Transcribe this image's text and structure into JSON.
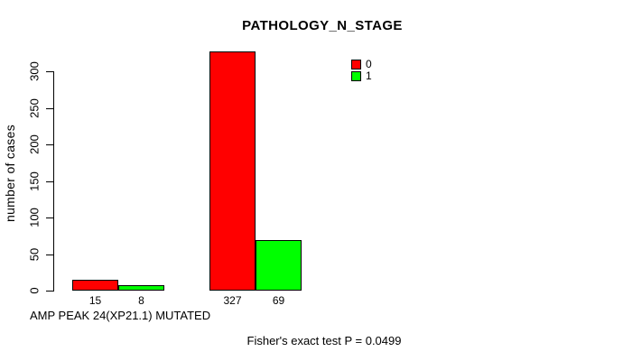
{
  "chart_data": {
    "type": "bar",
    "title": "PATHOLOGY_N_STAGE",
    "ylabel": "number of cases",
    "xlabel": "AMP PEAK 24(XP21.1) MUTATED",
    "annotation": "Fisher's exact test P = 0.0499",
    "ylim": [
      0,
      300
    ],
    "yticks": [
      0,
      50,
      100,
      150,
      200,
      250,
      300
    ],
    "grid": false,
    "bar_borders": true,
    "legend": {
      "position": "top-right",
      "entries": [
        {
          "label": "0",
          "color": "#FF0000"
        },
        {
          "label": "1",
          "color": "#00FF00"
        }
      ]
    },
    "series_colors": [
      "#FF0000",
      "#00FF00"
    ],
    "groups": [
      {
        "values": [
          15,
          8
        ]
      },
      {
        "values": [
          327,
          69
        ]
      }
    ],
    "bar_value_labels_shown": true
  }
}
